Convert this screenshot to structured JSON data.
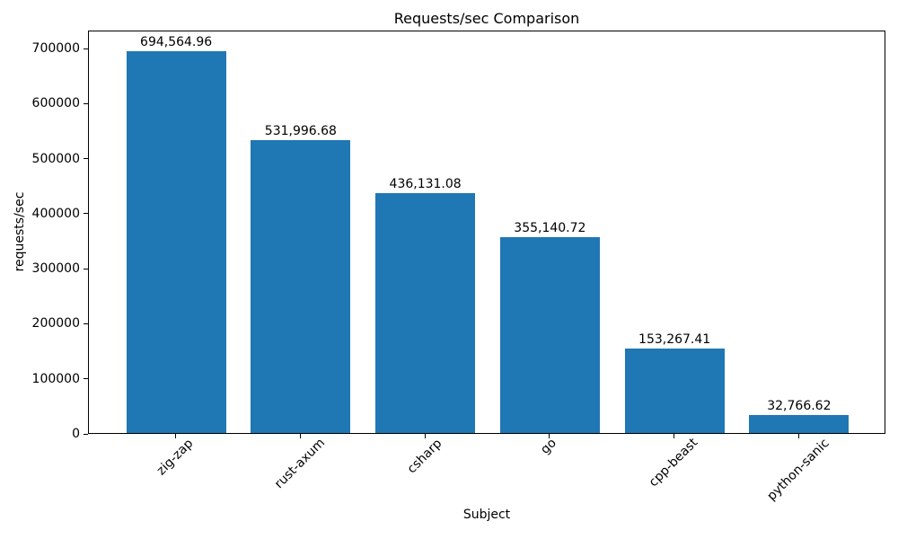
{
  "chart_data": {
    "type": "bar",
    "title": "Requests/sec Comparison",
    "xlabel": "Subject",
    "ylabel": "requests/sec",
    "categories": [
      "zig-zap",
      "rust-axum",
      "csharp",
      "go",
      "cpp-beast",
      "python-sanic"
    ],
    "values": [
      694564.96,
      531996.68,
      436131.08,
      355140.72,
      153267.41,
      32766.62
    ],
    "bar_labels": [
      "694,564.96",
      "531,996.68",
      "436,131.08",
      "355,140.72",
      "153,267.41",
      "32,766.62"
    ],
    "yticks": [
      0,
      100000,
      200000,
      300000,
      400000,
      500000,
      600000,
      700000
    ],
    "ytick_labels": [
      "0",
      "100000",
      "200000",
      "300000",
      "400000",
      "500000",
      "600000",
      "700000"
    ],
    "ylim": [
      0,
      733000
    ],
    "bar_color": "#1f77b4",
    "axis_color": "#000000",
    "grid": false,
    "legend": "none",
    "x_tick_rotation_deg": 45
  }
}
